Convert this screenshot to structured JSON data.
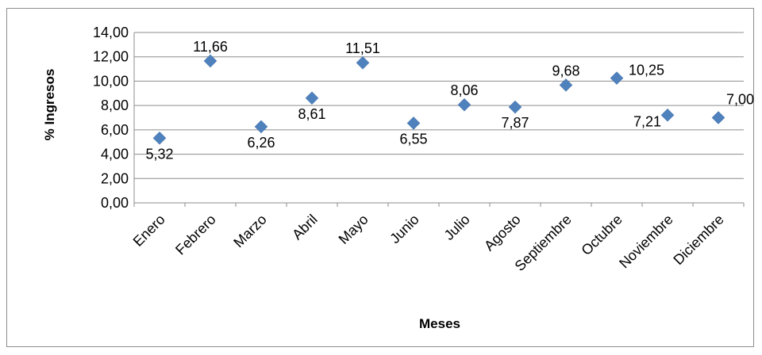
{
  "chart_data": {
    "type": "scatter",
    "title": "",
    "xlabel": "Meses",
    "ylabel": "% Ingresos",
    "ylim": [
      0,
      14
    ],
    "yticks": [
      "0,00",
      "2,00",
      "4,00",
      "6,00",
      "8,00",
      "10,00",
      "12,00",
      "14,00"
    ],
    "grid": true,
    "legend": "none",
    "marker_color": "#4f81bd",
    "categories": [
      "Enero",
      "Febrero",
      "Marzo",
      "Abril",
      "Mayo",
      "Junio",
      "Julio",
      "Agosto",
      "Septiembre",
      "Octubre",
      "Noviembre",
      "Diciembre"
    ],
    "values": [
      5.32,
      11.66,
      6.26,
      8.61,
      11.51,
      6.55,
      8.06,
      7.87,
      9.68,
      10.25,
      7.21,
      7.0
    ],
    "data_labels": [
      "5,32",
      "11,66",
      "6,26",
      "8,61",
      "11,51",
      "6,55",
      "8,06",
      "7,87",
      "9,68",
      "10,25",
      "7,21",
      "7,00"
    ]
  }
}
